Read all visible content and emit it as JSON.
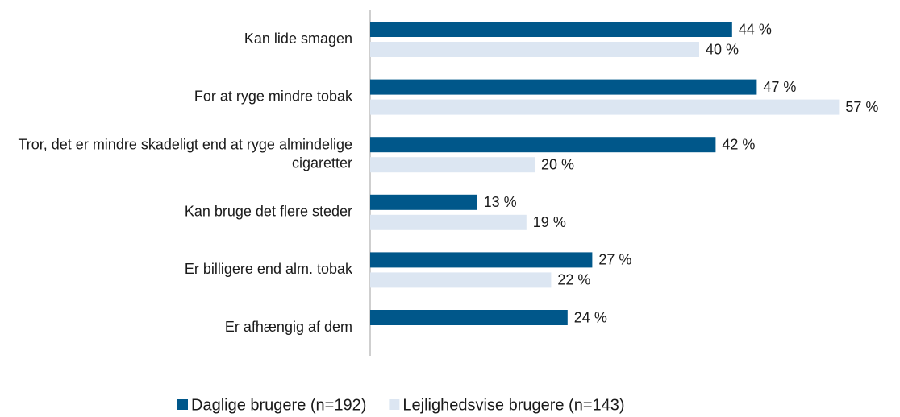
{
  "chart_data": {
    "type": "bar",
    "orientation": "horizontal",
    "categories": [
      "Kan lide smagen",
      "For at ryge mindre tobak",
      "Tror, det er mindre skadeligt end at ryge almindelige cigaretter",
      "Kan bruge det flere steder",
      "Er billigere end alm. tobak",
      "Er afhængig af dem"
    ],
    "series": [
      {
        "name": "Daglige brugere (n=192)",
        "color": "#00578a",
        "values": [
          44,
          47,
          42,
          13,
          27,
          24
        ],
        "value_labels": [
          "44 %",
          "47 %",
          "42 %",
          "13 %",
          "27 %",
          "24 %"
        ]
      },
      {
        "name": "Lejlighedsvise brugere (n=143)",
        "color": "#dce6f2",
        "values": [
          40,
          57,
          20,
          19,
          22,
          null
        ],
        "value_labels": [
          "40 %",
          "57 %",
          "20 %",
          "19 %",
          "22 %",
          null
        ]
      }
    ],
    "legend": "bottom"
  }
}
